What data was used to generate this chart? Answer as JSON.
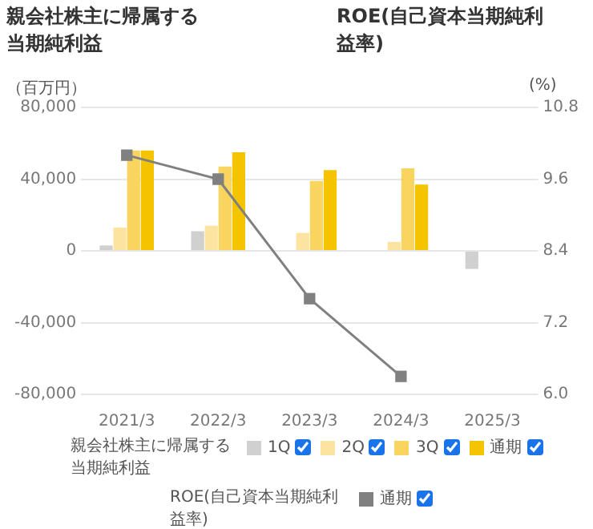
{
  "chart_data": {
    "type": "bar",
    "title": "親会社株主に帰属する当期純利益",
    "subtitle": "ROE(自己資本当期純利益率)",
    "ylabel": "（百万円）",
    "y2label": "(%)",
    "categories": [
      "2021/3",
      "2022/3",
      "2023/3",
      "2024/3",
      "2025/3"
    ],
    "series": [
      {
        "name": "1Q",
        "color": "#d0d0d0",
        "values": [
          3000,
          11000,
          null,
          null,
          -10000
        ]
      },
      {
        "name": "2Q",
        "color": "#fde3a0",
        "values": [
          13000,
          14000,
          10000,
          5000,
          null
        ]
      },
      {
        "name": "3Q",
        "color": "#f9d45e",
        "values": [
          56000,
          47000,
          39000,
          46000,
          null
        ]
      },
      {
        "name": "通期",
        "color": "#f5c400",
        "values": [
          56000,
          55000,
          45000,
          37000,
          null
        ]
      },
      {
        "name": "通期",
        "type": "line",
        "axis": "y2",
        "color": "#808080",
        "marker": "square",
        "values": [
          10.0,
          9.6,
          7.6,
          6.3,
          null
        ]
      }
    ],
    "ylim": [
      -80000,
      80000
    ],
    "yticks": [
      {
        "value": -80000,
        "label": "-80,000"
      },
      {
        "value": -40000,
        "label": "-40,000"
      },
      0,
      {
        "value": 40000,
        "label": "40,000"
      },
      {
        "value": 80000,
        "label": "80,000"
      }
    ],
    "y2lim": [
      6.0,
      10.8
    ],
    "y2ticks": [
      {
        "value": 6,
        "label": "6.0"
      },
      7.2,
      8.4,
      9.6,
      10.8
    ],
    "grid": "y",
    "legend": "bottom"
  }
}
